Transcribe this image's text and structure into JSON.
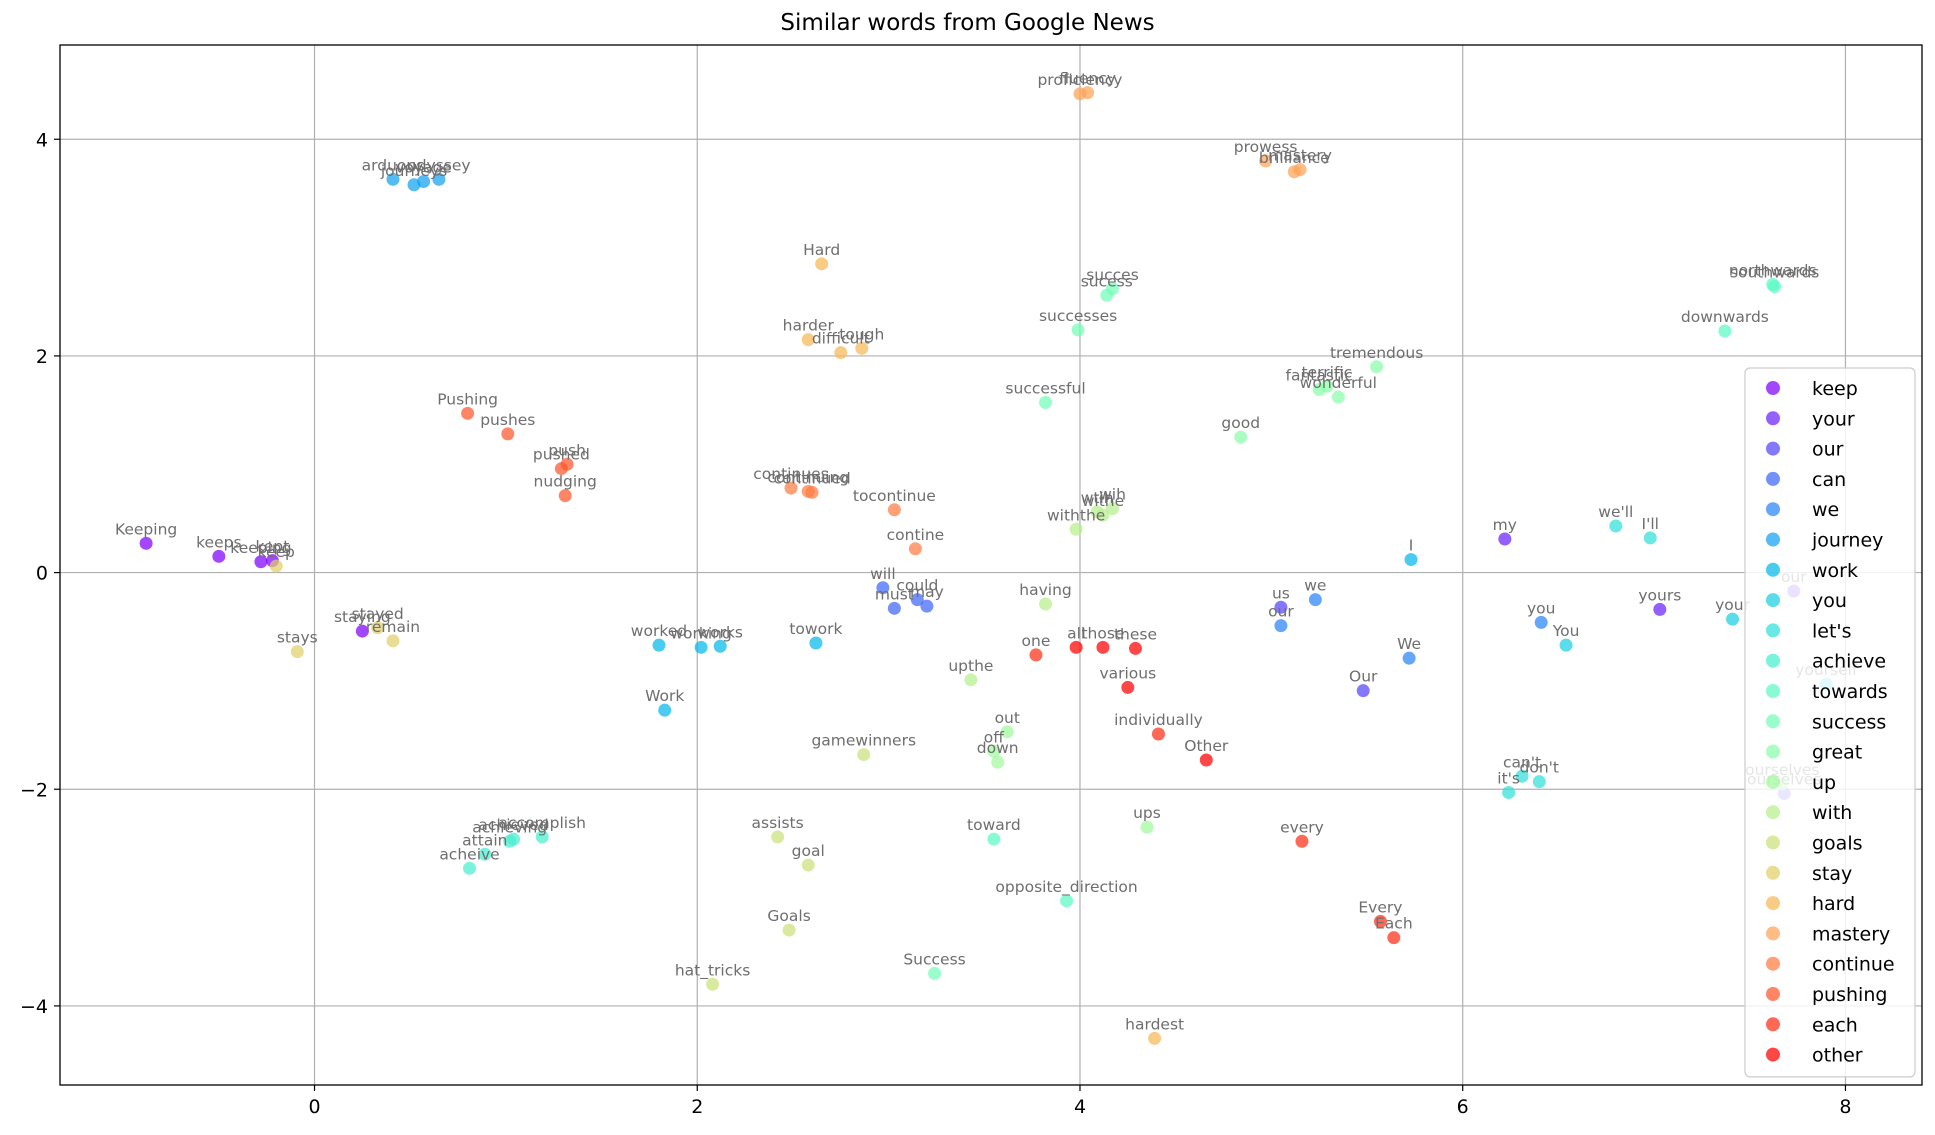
{
  "chart_data": {
    "type": "scatter",
    "title": "Similar words from Google News",
    "xlabel": "",
    "ylabel": "",
    "xlim": [
      -1.33,
      8.4
    ],
    "ylim": [
      -4.73,
      4.87
    ],
    "xticks": [
      0,
      2,
      4,
      6,
      8
    ],
    "yticks": [
      -4,
      -2,
      0,
      2,
      4
    ],
    "grid": true,
    "legend_position": "right",
    "series": [
      {
        "name": "keep",
        "color": "#8000ff",
        "points": [
          {
            "x": -0.88,
            "y": 0.27,
            "label": "Keeping"
          },
          {
            "x": -0.5,
            "y": 0.15,
            "label": "keeps"
          },
          {
            "x": -0.28,
            "y": 0.1,
            "label": "keeping"
          },
          {
            "x": -0.22,
            "y": 0.11,
            "label": "kept"
          },
          {
            "x": 0.25,
            "y": -0.54,
            "label": "staying"
          }
        ]
      },
      {
        "name": "your",
        "color": "#6a23fe",
        "points": [
          {
            "x": 6.22,
            "y": 0.31,
            "label": "my"
          },
          {
            "x": 7.03,
            "y": -0.34,
            "label": "yours"
          },
          {
            "x": 7.73,
            "y": -0.17,
            "label": "our"
          }
        ]
      },
      {
        "name": "our",
        "color": "#5445fc",
        "points": [
          {
            "x": 5.05,
            "y": -0.32,
            "label": "us"
          },
          {
            "x": 5.48,
            "y": -1.09,
            "label": "Our"
          },
          {
            "x": 7.68,
            "y": -2.04,
            "label": "ourselves"
          }
        ]
      },
      {
        "name": "can",
        "color": "#3e66f9",
        "points": [
          {
            "x": 2.97,
            "y": -0.14,
            "label": "will"
          },
          {
            "x": 3.03,
            "y": -0.33,
            "label": "must"
          },
          {
            "x": 3.15,
            "y": -0.25,
            "label": "could"
          },
          {
            "x": 3.2,
            "y": -0.31,
            "label": "may"
          }
        ]
      },
      {
        "name": "we",
        "color": "#2884f6",
        "points": [
          {
            "x": 5.05,
            "y": -0.49,
            "label": "our"
          },
          {
            "x": 5.23,
            "y": -0.25,
            "label": "we"
          },
          {
            "x": 5.72,
            "y": -0.79,
            "label": "We"
          },
          {
            "x": 6.41,
            "y": -0.46,
            "label": "you"
          }
        ]
      },
      {
        "name": "journey",
        "color": "#12a1f1",
        "points": [
          {
            "x": 0.41,
            "y": 3.63,
            "label": "arduous"
          },
          {
            "x": 0.52,
            "y": 3.58,
            "label": "journeys"
          },
          {
            "x": 0.57,
            "y": 3.61,
            "label": "voyage"
          },
          {
            "x": 0.65,
            "y": 3.63,
            "label": "odyssey"
          }
        ]
      },
      {
        "name": "work",
        "color": "#04b9ea",
        "points": [
          {
            "x": 1.8,
            "y": -0.67,
            "label": "worked"
          },
          {
            "x": 1.83,
            "y": -1.27,
            "label": "Work"
          },
          {
            "x": 2.02,
            "y": -0.69,
            "label": "working"
          },
          {
            "x": 2.12,
            "y": -0.68,
            "label": "works"
          },
          {
            "x": 2.62,
            "y": -0.65,
            "label": "towork"
          },
          {
            "x": 5.73,
            "y": 0.12,
            "label": "I"
          }
        ]
      },
      {
        "name": "you",
        "color": "#1acfe3",
        "points": [
          {
            "x": 6.54,
            "y": -0.67,
            "label": "You"
          },
          {
            "x": 7.41,
            "y": -0.43,
            "label": "your"
          },
          {
            "x": 7.9,
            "y": -1.03,
            "label": "yourself"
          }
        ]
      },
      {
        "name": "let's",
        "color": "#30e1da",
        "points": [
          {
            "x": 6.8,
            "y": 0.43,
            "label": "we'll"
          },
          {
            "x": 6.98,
            "y": 0.32,
            "label": "I'll"
          },
          {
            "x": 6.24,
            "y": -2.03,
            "label": "it's"
          },
          {
            "x": 6.31,
            "y": -1.88,
            "label": "can't"
          },
          {
            "x": 6.4,
            "y": -1.93,
            "label": "don't"
          }
        ]
      },
      {
        "name": "achieve",
        "color": "#46efcf",
        "points": [
          {
            "x": 0.81,
            "y": -2.73,
            "label": "acheive"
          },
          {
            "x": 0.89,
            "y": -2.6,
            "label": "attain"
          },
          {
            "x": 1.02,
            "y": -2.48,
            "label": "achieving"
          },
          {
            "x": 1.04,
            "y": -2.46,
            "label": "achieved"
          },
          {
            "x": 1.19,
            "y": -2.44,
            "label": "accomplish"
          }
        ]
      },
      {
        "name": "towards",
        "color": "#5cf9c4",
        "points": [
          {
            "x": 3.55,
            "y": -2.46,
            "label": "toward"
          },
          {
            "x": 3.93,
            "y": -3.03,
            "label": "opposite_direction"
          },
          {
            "x": 7.37,
            "y": 2.23,
            "label": "downwards"
          },
          {
            "x": 7.63,
            "y": 2.64,
            "label": "southwards"
          },
          {
            "x": 7.62,
            "y": 2.66,
            "label": "northwards"
          }
        ]
      },
      {
        "name": "success",
        "color": "#72feb7",
        "points": [
          {
            "x": 3.24,
            "y": -3.7,
            "label": "Success"
          },
          {
            "x": 3.82,
            "y": 1.57,
            "label": "successful"
          },
          {
            "x": 3.99,
            "y": 2.24,
            "label": "successes"
          },
          {
            "x": 4.14,
            "y": 2.56,
            "label": "sucess"
          },
          {
            "x": 4.17,
            "y": 2.62,
            "label": "succes"
          }
        ]
      },
      {
        "name": "great",
        "color": "#8afea9",
        "points": [
          {
            "x": 4.84,
            "y": 1.25,
            "label": "good"
          },
          {
            "x": 5.25,
            "y": 1.69,
            "label": "fantastic"
          },
          {
            "x": 5.29,
            "y": 1.72,
            "label": "terrific"
          },
          {
            "x": 5.35,
            "y": 1.62,
            "label": "wonderful"
          },
          {
            "x": 5.55,
            "y": 1.9,
            "label": "tremendous"
          }
        ]
      },
      {
        "name": "up",
        "color": "#a0f99b",
        "points": [
          {
            "x": 3.55,
            "y": -1.65,
            "label": "off"
          },
          {
            "x": 3.57,
            "y": -1.75,
            "label": "down"
          },
          {
            "x": 3.62,
            "y": -1.47,
            "label": "out"
          },
          {
            "x": 4.35,
            "y": -2.35,
            "label": "ups"
          },
          {
            "x": 7.67,
            "y": -1.95,
            "label": "ourselves"
          }
        ]
      },
      {
        "name": "with",
        "color": "#b6ef8c",
        "points": [
          {
            "x": 3.43,
            "y": -0.99,
            "label": "upthe"
          },
          {
            "x": 3.82,
            "y": -0.29,
            "label": "having"
          },
          {
            "x": 3.98,
            "y": 0.4,
            "label": "withthe"
          },
          {
            "x": 4.09,
            "y": 0.56,
            "label": "wtih"
          },
          {
            "x": 4.12,
            "y": 0.53,
            "label": "withe"
          },
          {
            "x": 4.17,
            "y": 0.59,
            "label": "wih"
          }
        ]
      },
      {
        "name": "goals",
        "color": "#cce17b",
        "points": [
          {
            "x": 2.08,
            "y": -3.8,
            "label": "hat_tricks"
          },
          {
            "x": 2.42,
            "y": -2.44,
            "label": "assists"
          },
          {
            "x": 2.48,
            "y": -3.3,
            "label": "Goals"
          },
          {
            "x": 2.58,
            "y": -2.7,
            "label": "goal"
          },
          {
            "x": 2.87,
            "y": -1.68,
            "label": "gamewinners"
          }
        ]
      },
      {
        "name": "stay",
        "color": "#e0cf6a",
        "points": [
          {
            "x": -0.09,
            "y": -0.73,
            "label": "stays"
          },
          {
            "x": -0.2,
            "y": 0.06,
            "label": "keep"
          },
          {
            "x": 0.33,
            "y": -0.51,
            "label": "stayed"
          },
          {
            "x": 0.41,
            "y": -0.63,
            "label": "remain"
          }
        ]
      },
      {
        "name": "hard",
        "color": "#f6b958",
        "points": [
          {
            "x": 2.65,
            "y": 2.85,
            "label": "Hard"
          },
          {
            "x": 2.58,
            "y": 2.15,
            "label": "harder"
          },
          {
            "x": 2.75,
            "y": 2.03,
            "label": "difficult"
          },
          {
            "x": 2.86,
            "y": 2.07,
            "label": "tough"
          },
          {
            "x": 4.39,
            "y": -4.3,
            "label": "hardest"
          }
        ]
      },
      {
        "name": "mastery",
        "color": "#ffa256",
        "points": [
          {
            "x": 4.0,
            "y": 4.42,
            "label": "proficiency"
          },
          {
            "x": 4.04,
            "y": 4.43,
            "label": "fluency"
          },
          {
            "x": 4.97,
            "y": 3.8,
            "label": "prowess"
          },
          {
            "x": 5.12,
            "y": 3.7,
            "label": "brilliance"
          },
          {
            "x": 5.15,
            "y": 3.72,
            "label": "mastery"
          }
        ]
      },
      {
        "name": "continue",
        "color": "#ff7b41",
        "points": [
          {
            "x": 2.49,
            "y": 0.78,
            "label": "continues"
          },
          {
            "x": 2.58,
            "y": 0.75,
            "label": "continuing"
          },
          {
            "x": 2.6,
            "y": 0.74,
            "label": "continued"
          },
          {
            "x": 3.03,
            "y": 0.58,
            "label": "tocontinue"
          },
          {
            "x": 3.14,
            "y": 0.22,
            "label": "contine"
          }
        ]
      },
      {
        "name": "pushing",
        "color": "#ff562c",
        "points": [
          {
            "x": 0.8,
            "y": 1.47,
            "label": "Pushing"
          },
          {
            "x": 1.01,
            "y": 1.28,
            "label": "pushes"
          },
          {
            "x": 1.29,
            "y": 0.96,
            "label": "pushed"
          },
          {
            "x": 1.32,
            "y": 1.0,
            "label": "push"
          },
          {
            "x": 1.31,
            "y": 0.71,
            "label": "nudging"
          }
        ]
      },
      {
        "name": "each",
        "color": "#ff2c16",
        "points": [
          {
            "x": 3.77,
            "y": -0.76,
            "label": "one"
          },
          {
            "x": 4.41,
            "y": -1.49,
            "label": "individually"
          },
          {
            "x": 5.16,
            "y": -2.48,
            "label": "every"
          },
          {
            "x": 5.57,
            "y": -3.22,
            "label": "Every"
          },
          {
            "x": 5.64,
            "y": -3.37,
            "label": "Each"
          }
        ]
      },
      {
        "name": "other",
        "color": "#ff0000",
        "points": [
          {
            "x": 3.98,
            "y": -0.69,
            "label": "all"
          },
          {
            "x": 4.12,
            "y": -0.69,
            "label": "those"
          },
          {
            "x": 4.29,
            "y": -0.7,
            "label": "these"
          },
          {
            "x": 4.25,
            "y": -1.06,
            "label": "various"
          },
          {
            "x": 4.66,
            "y": -1.73,
            "label": "Other"
          }
        ]
      }
    ]
  }
}
